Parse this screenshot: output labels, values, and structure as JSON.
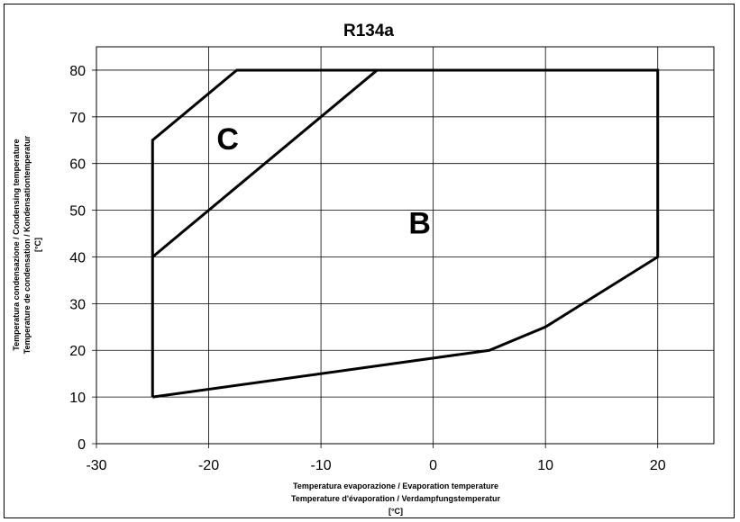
{
  "chart_data": {
    "type": "line",
    "title": "R134a",
    "xlabel_lines": [
      "Temperatura evaporazione / Evaporation temperature",
      "Temperature d'évaporation / Verdampfungstemperatur",
      "[°C]"
    ],
    "ylabel_lines": [
      "Temperatura condensazione / Condensing temperature",
      "Temperature de condensation / Kondensationtemperatur",
      "[°C]"
    ],
    "xlim": [
      -30,
      25
    ],
    "ylim": [
      0,
      85
    ],
    "x_ticks": [
      -30,
      -20,
      -10,
      0,
      10,
      20
    ],
    "y_ticks": [
      0,
      10,
      20,
      30,
      40,
      50,
      60,
      70,
      80
    ],
    "grid": true,
    "series": [
      {
        "points": [
          [
            -25,
            10
          ],
          [
            -25,
            65
          ],
          [
            -17.5,
            80
          ],
          [
            20,
            80
          ],
          [
            20,
            40
          ],
          [
            10,
            25
          ],
          [
            5,
            20
          ],
          [
            -25,
            10
          ]
        ]
      },
      {
        "points": [
          [
            -25,
            40
          ],
          [
            -5,
            80
          ]
        ]
      }
    ],
    "region_labels": [
      {
        "text": "C",
        "x": -18.3,
        "y": 63
      },
      {
        "text": "B",
        "x": -1.2,
        "y": 45
      }
    ],
    "colors": {
      "line": "#000000",
      "grid": "#000000",
      "background": "#ffffff"
    }
  }
}
